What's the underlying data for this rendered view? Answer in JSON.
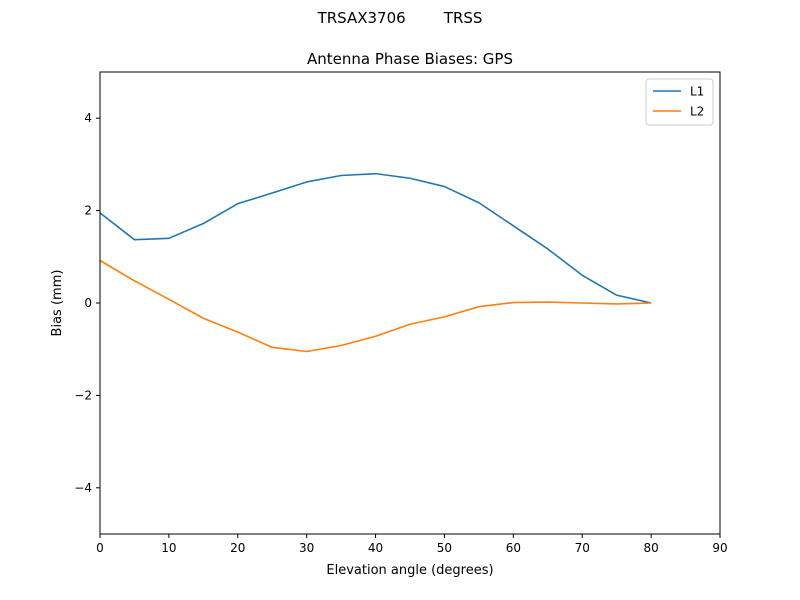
{
  "suptitle": "TRSAX3706        TRSS",
  "chart_data": {
    "type": "line",
    "title": "Antenna Phase Biases: GPS",
    "xlabel": "Elevation angle (degrees)",
    "ylabel": "Bias (mm)",
    "xlim": [
      0,
      90
    ],
    "ylim": [
      -5,
      5
    ],
    "xticks": [
      0,
      10,
      20,
      30,
      40,
      50,
      60,
      70,
      80,
      90
    ],
    "yticks": [
      -4,
      -2,
      0,
      2,
      4
    ],
    "ytick_labels": [
      "−4",
      "−2",
      "0",
      "2",
      "4"
    ],
    "xtick_labels": [
      "0",
      "10",
      "20",
      "30",
      "40",
      "50",
      "60",
      "70",
      "80",
      "90"
    ],
    "grid": false,
    "legend_position": "top-right",
    "x": [
      0,
      5,
      10,
      15,
      20,
      25,
      30,
      35,
      40,
      45,
      50,
      55,
      60,
      65,
      70,
      75,
      80
    ],
    "series": [
      {
        "name": "L1",
        "color": "#1f77b4",
        "values": [
          1.95,
          1.37,
          1.4,
          1.72,
          2.15,
          2.38,
          2.62,
          2.76,
          2.8,
          2.7,
          2.52,
          2.17,
          1.67,
          1.17,
          0.6,
          0.17,
          0.0
        ]
      },
      {
        "name": "L2",
        "color": "#ff7f0e",
        "values": [
          0.92,
          0.48,
          0.08,
          -0.33,
          -0.63,
          -0.96,
          -1.05,
          -0.92,
          -0.72,
          -0.46,
          -0.3,
          -0.08,
          0.01,
          0.02,
          0.0,
          -0.02,
          0.0
        ]
      }
    ]
  }
}
